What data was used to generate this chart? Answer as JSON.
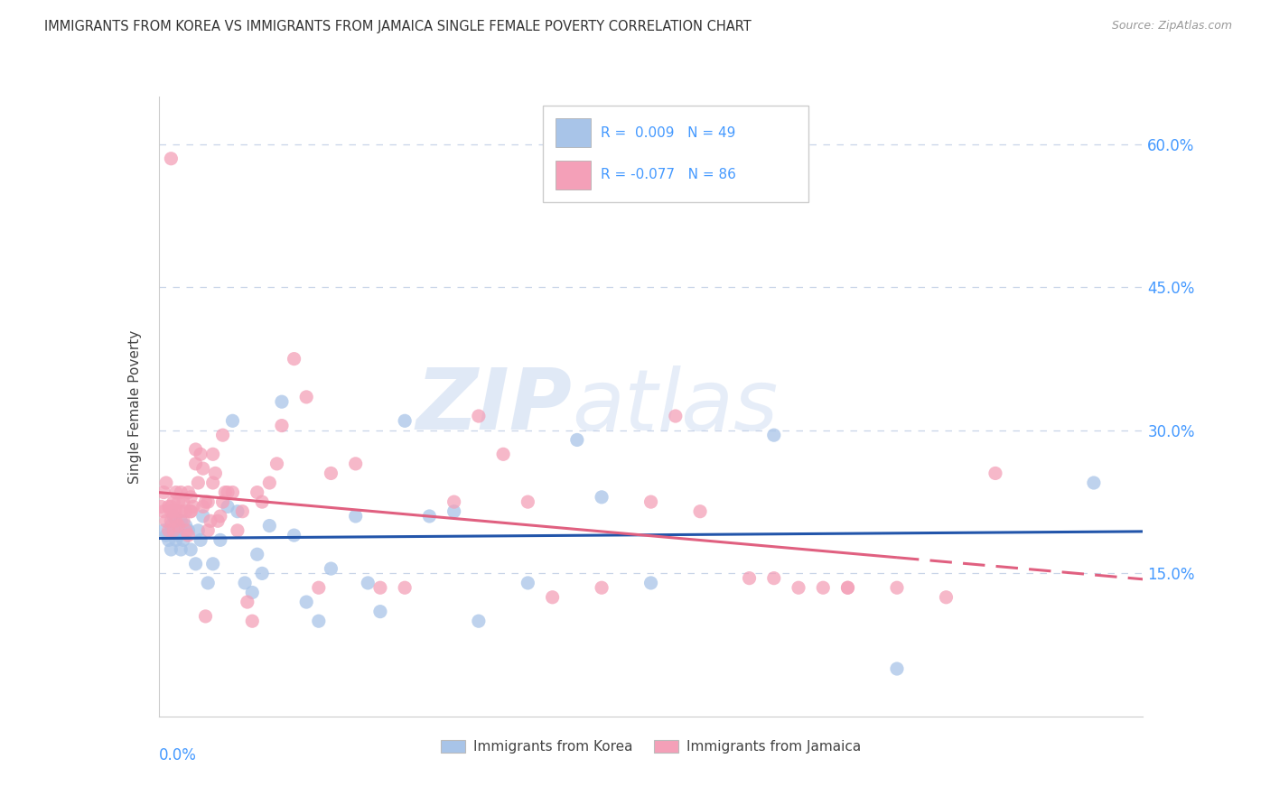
{
  "title": "IMMIGRANTS FROM KOREA VS IMMIGRANTS FROM JAMAICA SINGLE FEMALE POVERTY CORRELATION CHART",
  "source": "Source: ZipAtlas.com",
  "ylabel": "Single Female Poverty",
  "x_min": 0.0,
  "x_max": 0.4,
  "y_min": 0.0,
  "y_max": 0.65,
  "yticks": [
    0.15,
    0.3,
    0.45,
    0.6
  ],
  "ytick_labels": [
    "15.0%",
    "30.0%",
    "45.0%",
    "60.0%"
  ],
  "korea_color": "#a8c4e8",
  "jamaica_color": "#f4a0b8",
  "korea_line_color": "#2255aa",
  "jamaica_line_color": "#e06080",
  "korea_R": 0.009,
  "korea_N": 49,
  "jamaica_R": -0.077,
  "jamaica_N": 86,
  "background_color": "#ffffff",
  "grid_color": "#c8d4e8",
  "legend_label_korea": "Immigrants from Korea",
  "legend_label_jamaica": "Immigrants from Jamaica",
  "tick_color": "#4499ff",
  "korea_x": [
    0.002,
    0.003,
    0.004,
    0.005,
    0.005,
    0.006,
    0.007,
    0.007,
    0.008,
    0.009,
    0.009,
    0.01,
    0.011,
    0.012,
    0.013,
    0.015,
    0.016,
    0.017,
    0.018,
    0.02,
    0.022,
    0.025,
    0.028,
    0.03,
    0.032,
    0.035,
    0.038,
    0.04,
    0.042,
    0.045,
    0.05,
    0.055,
    0.06,
    0.065,
    0.07,
    0.08,
    0.085,
    0.09,
    0.1,
    0.11,
    0.12,
    0.13,
    0.15,
    0.17,
    0.18,
    0.2,
    0.25,
    0.3,
    0.38
  ],
  "korea_y": [
    0.195,
    0.19,
    0.185,
    0.2,
    0.175,
    0.21,
    0.185,
    0.195,
    0.19,
    0.205,
    0.175,
    0.185,
    0.2,
    0.195,
    0.175,
    0.16,
    0.195,
    0.185,
    0.21,
    0.14,
    0.16,
    0.185,
    0.22,
    0.31,
    0.215,
    0.14,
    0.13,
    0.17,
    0.15,
    0.2,
    0.33,
    0.19,
    0.12,
    0.1,
    0.155,
    0.21,
    0.14,
    0.11,
    0.31,
    0.21,
    0.215,
    0.1,
    0.14,
    0.29,
    0.23,
    0.14,
    0.295,
    0.05,
    0.245
  ],
  "jamaica_x": [
    0.001,
    0.002,
    0.002,
    0.003,
    0.003,
    0.004,
    0.004,
    0.005,
    0.005,
    0.005,
    0.006,
    0.006,
    0.006,
    0.007,
    0.007,
    0.007,
    0.008,
    0.008,
    0.009,
    0.009,
    0.01,
    0.01,
    0.011,
    0.011,
    0.012,
    0.012,
    0.013,
    0.013,
    0.014,
    0.015,
    0.015,
    0.016,
    0.017,
    0.018,
    0.018,
    0.019,
    0.02,
    0.02,
    0.021,
    0.022,
    0.022,
    0.023,
    0.024,
    0.025,
    0.026,
    0.027,
    0.028,
    0.03,
    0.032,
    0.034,
    0.036,
    0.038,
    0.04,
    0.042,
    0.045,
    0.048,
    0.05,
    0.055,
    0.06,
    0.065,
    0.07,
    0.08,
    0.09,
    0.1,
    0.12,
    0.13,
    0.14,
    0.15,
    0.16,
    0.18,
    0.2,
    0.21,
    0.22,
    0.24,
    0.25,
    0.27,
    0.28,
    0.3,
    0.32,
    0.34,
    0.005,
    0.26,
    0.28,
    0.013,
    0.019,
    0.026
  ],
  "jamaica_y": [
    0.22,
    0.235,
    0.215,
    0.245,
    0.205,
    0.22,
    0.195,
    0.215,
    0.22,
    0.205,
    0.225,
    0.195,
    0.215,
    0.235,
    0.215,
    0.205,
    0.225,
    0.2,
    0.235,
    0.215,
    0.205,
    0.225,
    0.215,
    0.195,
    0.235,
    0.19,
    0.23,
    0.215,
    0.22,
    0.265,
    0.28,
    0.245,
    0.275,
    0.22,
    0.26,
    0.225,
    0.225,
    0.195,
    0.205,
    0.245,
    0.275,
    0.255,
    0.205,
    0.21,
    0.295,
    0.235,
    0.235,
    0.235,
    0.195,
    0.215,
    0.12,
    0.1,
    0.235,
    0.225,
    0.245,
    0.265,
    0.305,
    0.375,
    0.335,
    0.135,
    0.255,
    0.265,
    0.135,
    0.135,
    0.225,
    0.315,
    0.275,
    0.225,
    0.125,
    0.135,
    0.225,
    0.315,
    0.215,
    0.145,
    0.145,
    0.135,
    0.135,
    0.135,
    0.125,
    0.255,
    0.585,
    0.135,
    0.135,
    0.215,
    0.105,
    0.225
  ]
}
